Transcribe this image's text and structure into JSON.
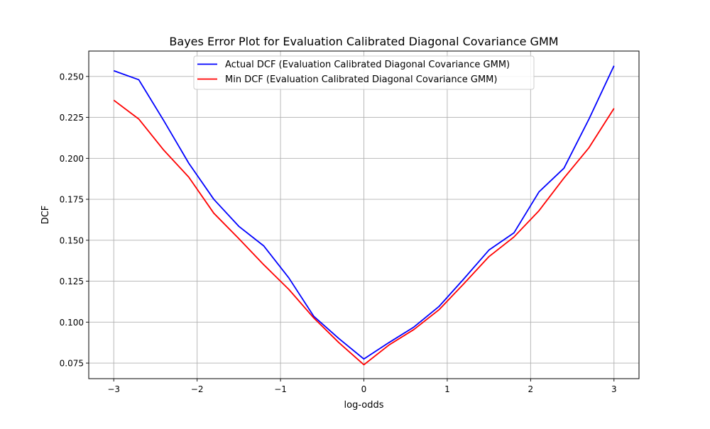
{
  "chart_data": {
    "type": "line",
    "title": "Bayes Error Plot for Evaluation Calibrated Diagonal Covariance GMM",
    "xlabel": "log-odds",
    "ylabel": "DCF",
    "xlim": [
      -3.3,
      3.3
    ],
    "ylim": [
      0.0655,
      0.2655
    ],
    "grid": true,
    "legend_position": "upper center",
    "x_ticks": [
      -3,
      -2,
      -1,
      0,
      1,
      2,
      3
    ],
    "x_tick_labels": [
      "−3",
      "−2",
      "−1",
      "0",
      "1",
      "2",
      "3"
    ],
    "y_ticks": [
      0.075,
      0.1,
      0.125,
      0.15,
      0.175,
      0.2,
      0.225,
      0.25
    ],
    "y_tick_labels": [
      "0.075",
      "0.100",
      "0.125",
      "0.150",
      "0.175",
      "0.200",
      "0.225",
      "0.250"
    ],
    "x": [
      -3.0,
      -2.7,
      -2.4,
      -2.1,
      -1.8,
      -1.5,
      -1.2,
      -0.9,
      -0.6,
      -0.3,
      0.0,
      0.3,
      0.6,
      0.9,
      1.2,
      1.5,
      1.8,
      2.1,
      2.4,
      2.7,
      3.0
    ],
    "series": [
      {
        "name": "Actual DCF (Evaluation Calibrated Diagonal Covariance GMM)",
        "color": "#0000ff",
        "values": [
          0.2535,
          0.248,
          0.223,
          0.197,
          0.175,
          0.1585,
          0.1465,
          0.127,
          0.1035,
          0.09,
          0.0775,
          0.0875,
          0.097,
          0.1095,
          0.1265,
          0.144,
          0.1545,
          0.1795,
          0.194,
          0.224,
          0.2565
        ]
      },
      {
        "name": "Min DCF (Evaluation Calibrated Diagonal Covariance GMM)",
        "color": "#ff0000",
        "values": [
          0.2355,
          0.224,
          0.205,
          0.1885,
          0.1665,
          0.151,
          0.135,
          0.12,
          0.1025,
          0.0875,
          0.074,
          0.086,
          0.0955,
          0.1075,
          0.1235,
          0.14,
          0.152,
          0.168,
          0.188,
          0.2065,
          0.2305
        ]
      }
    ]
  }
}
